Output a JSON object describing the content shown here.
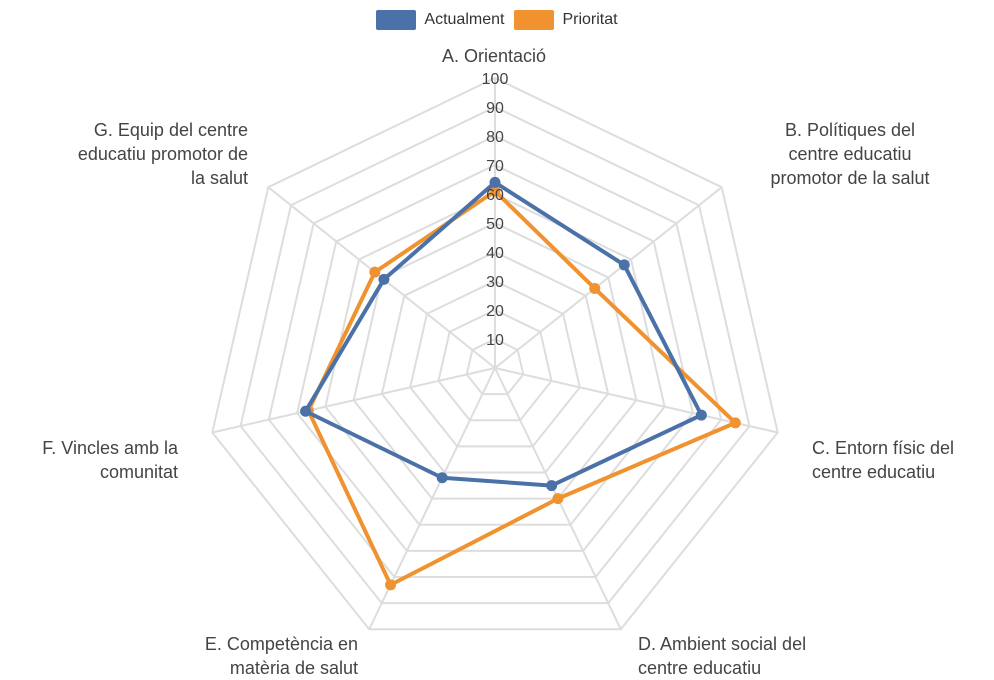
{
  "chart_data": {
    "type": "radar",
    "axes": [
      "A. Orientació",
      "B. Polítiques del\ncentre educatiu\npromotor de la salut",
      "C. Entorn físic del\ncentre educatiu",
      "D. Ambient social del\ncentre educatiu",
      "E. Competència en\nmatèria de salut",
      "F. Vincles amb la\ncomunitat",
      "G. Equip del centre\neducatiu promotor de\nla salut"
    ],
    "series": [
      {
        "name": "Actualment",
        "color": "#4a72a8",
        "values": [
          64,
          57,
          73,
          45,
          42,
          67,
          49
        ]
      },
      {
        "name": "Prioritat",
        "color": "#f0922f",
        "values": [
          61,
          44,
          85,
          50,
          83,
          66,
          53
        ]
      }
    ],
    "rlim": [
      0,
      100
    ],
    "ticks": [
      "10",
      "20",
      "30",
      "40",
      "50",
      "60",
      "70",
      "80",
      "90",
      "100"
    ],
    "grid": true,
    "legend_position": "top-center"
  }
}
